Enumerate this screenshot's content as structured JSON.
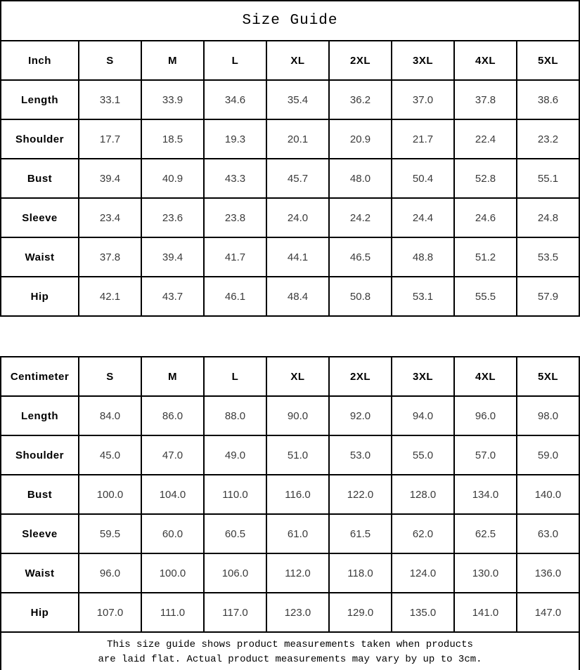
{
  "title": "Size Guide",
  "colors": {
    "border": "#000000",
    "background": "#ffffff",
    "header_text": "#000000",
    "value_text": "#3b3b3b"
  },
  "tables": [
    {
      "unit_label": "Inch",
      "columns": [
        "S",
        "M",
        "L",
        "XL",
        "2XL",
        "3XL",
        "4XL",
        "5XL"
      ],
      "rows": [
        {
          "label": "Length",
          "values": [
            "33.1",
            "33.9",
            "34.6",
            "35.4",
            "36.2",
            "37.0",
            "37.8",
            "38.6"
          ]
        },
        {
          "label": "Shoulder",
          "values": [
            "17.7",
            "18.5",
            "19.3",
            "20.1",
            "20.9",
            "21.7",
            "22.4",
            "23.2"
          ]
        },
        {
          "label": "Bust",
          "values": [
            "39.4",
            "40.9",
            "43.3",
            "45.7",
            "48.0",
            "50.4",
            "52.8",
            "55.1"
          ]
        },
        {
          "label": "Sleeve",
          "values": [
            "23.4",
            "23.6",
            "23.8",
            "24.0",
            "24.2",
            "24.4",
            "24.6",
            "24.8"
          ]
        },
        {
          "label": "Waist",
          "values": [
            "37.8",
            "39.4",
            "41.7",
            "44.1",
            "46.5",
            "48.8",
            "51.2",
            "53.5"
          ]
        },
        {
          "label": "Hip",
          "values": [
            "42.1",
            "43.7",
            "46.1",
            "48.4",
            "50.8",
            "53.1",
            "55.5",
            "57.9"
          ]
        }
      ]
    },
    {
      "unit_label": "Centimeter",
      "columns": [
        "S",
        "M",
        "L",
        "XL",
        "2XL",
        "3XL",
        "4XL",
        "5XL"
      ],
      "rows": [
        {
          "label": "Length",
          "values": [
            "84.0",
            "86.0",
            "88.0",
            "90.0",
            "92.0",
            "94.0",
            "96.0",
            "98.0"
          ]
        },
        {
          "label": "Shoulder",
          "values": [
            "45.0",
            "47.0",
            "49.0",
            "51.0",
            "53.0",
            "55.0",
            "57.0",
            "59.0"
          ]
        },
        {
          "label": "Bust",
          "values": [
            "100.0",
            "104.0",
            "110.0",
            "116.0",
            "122.0",
            "128.0",
            "134.0",
            "140.0"
          ]
        },
        {
          "label": "Sleeve",
          "values": [
            "59.5",
            "60.0",
            "60.5",
            "61.0",
            "61.5",
            "62.0",
            "62.5",
            "63.0"
          ]
        },
        {
          "label": "Waist",
          "values": [
            "96.0",
            "100.0",
            "106.0",
            "112.0",
            "118.0",
            "124.0",
            "130.0",
            "136.0"
          ]
        },
        {
          "label": "Hip",
          "values": [
            "107.0",
            "111.0",
            "117.0",
            "123.0",
            "129.0",
            "135.0",
            "141.0",
            "147.0"
          ]
        }
      ]
    }
  ],
  "footer": {
    "lines": [
      "This size guide shows product measurements taken when products",
      "are laid flat. Actual product measurements may vary by up to 3cm."
    ]
  }
}
